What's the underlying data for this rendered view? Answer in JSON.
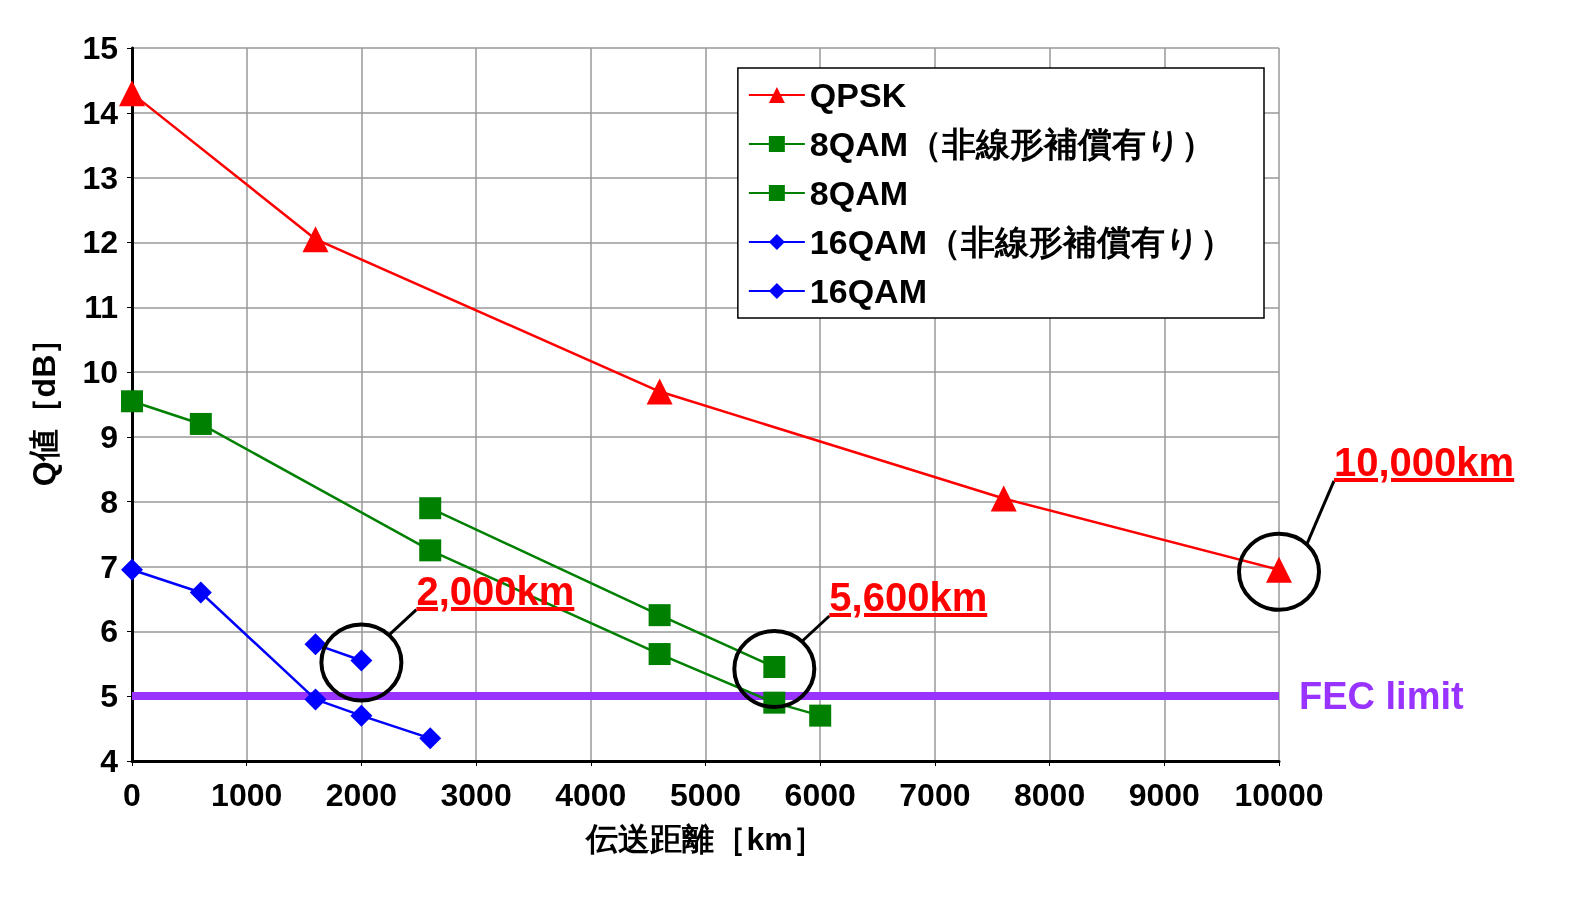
{
  "chart_data": {
    "type": "line",
    "xlabel": "伝送距離［km］",
    "ylabel": "Q値［dB］",
    "xlim": [
      0,
      10000
    ],
    "xticks": [
      0,
      1000,
      2000,
      3000,
      4000,
      5000,
      6000,
      7000,
      8000,
      9000,
      10000
    ],
    "ylim": [
      4,
      15
    ],
    "yticks": [
      4,
      5,
      6,
      7,
      8,
      9,
      10,
      11,
      12,
      13,
      14,
      15
    ],
    "grid": true,
    "legend": "top right",
    "line_style": "solid",
    "series": [
      {
        "name": "QPSK",
        "color": "#ff0000",
        "marker": "triangle",
        "x": [
          0,
          1600,
          4600,
          7600,
          10000
        ],
        "values": [
          14.3,
          12.05,
          9.7,
          8.05,
          6.95
        ]
      },
      {
        "name": "8QAM（非線形補償有り）",
        "color": "#008000",
        "marker": "square",
        "x": [
          2600,
          4600,
          5600
        ],
        "values": [
          7.9,
          6.25,
          5.45
        ]
      },
      {
        "name": "8QAM",
        "color": "#008000",
        "marker": "square",
        "x": [
          0,
          600,
          2600,
          4600,
          5600,
          6000
        ],
        "values": [
          9.55,
          9.2,
          7.25,
          5.65,
          4.9,
          4.7
        ]
      },
      {
        "name": "16QAM（非線形補償有り）",
        "color": "#0000ff",
        "marker": "diamond",
        "x": [
          1600,
          2000
        ],
        "values": [
          5.8,
          5.55
        ]
      },
      {
        "name": "16QAM",
        "color": "#0000ff",
        "marker": "diamond",
        "x": [
          0,
          600,
          1600,
          2000,
          2600
        ],
        "values": [
          6.95,
          6.6,
          4.95,
          4.7,
          4.35
        ]
      }
    ],
    "ref_lines": [
      {
        "axis": "y",
        "value": 5,
        "label": "FEC limit",
        "color": "#9933ff"
      }
    ],
    "annotations": [
      {
        "text": "2,000km",
        "x": 2000,
        "y": 5.55
      },
      {
        "text": "5,600km",
        "x": 5600,
        "y": 5.45
      },
      {
        "text": "10,000km",
        "x": 10000,
        "y": 6.95
      }
    ]
  }
}
